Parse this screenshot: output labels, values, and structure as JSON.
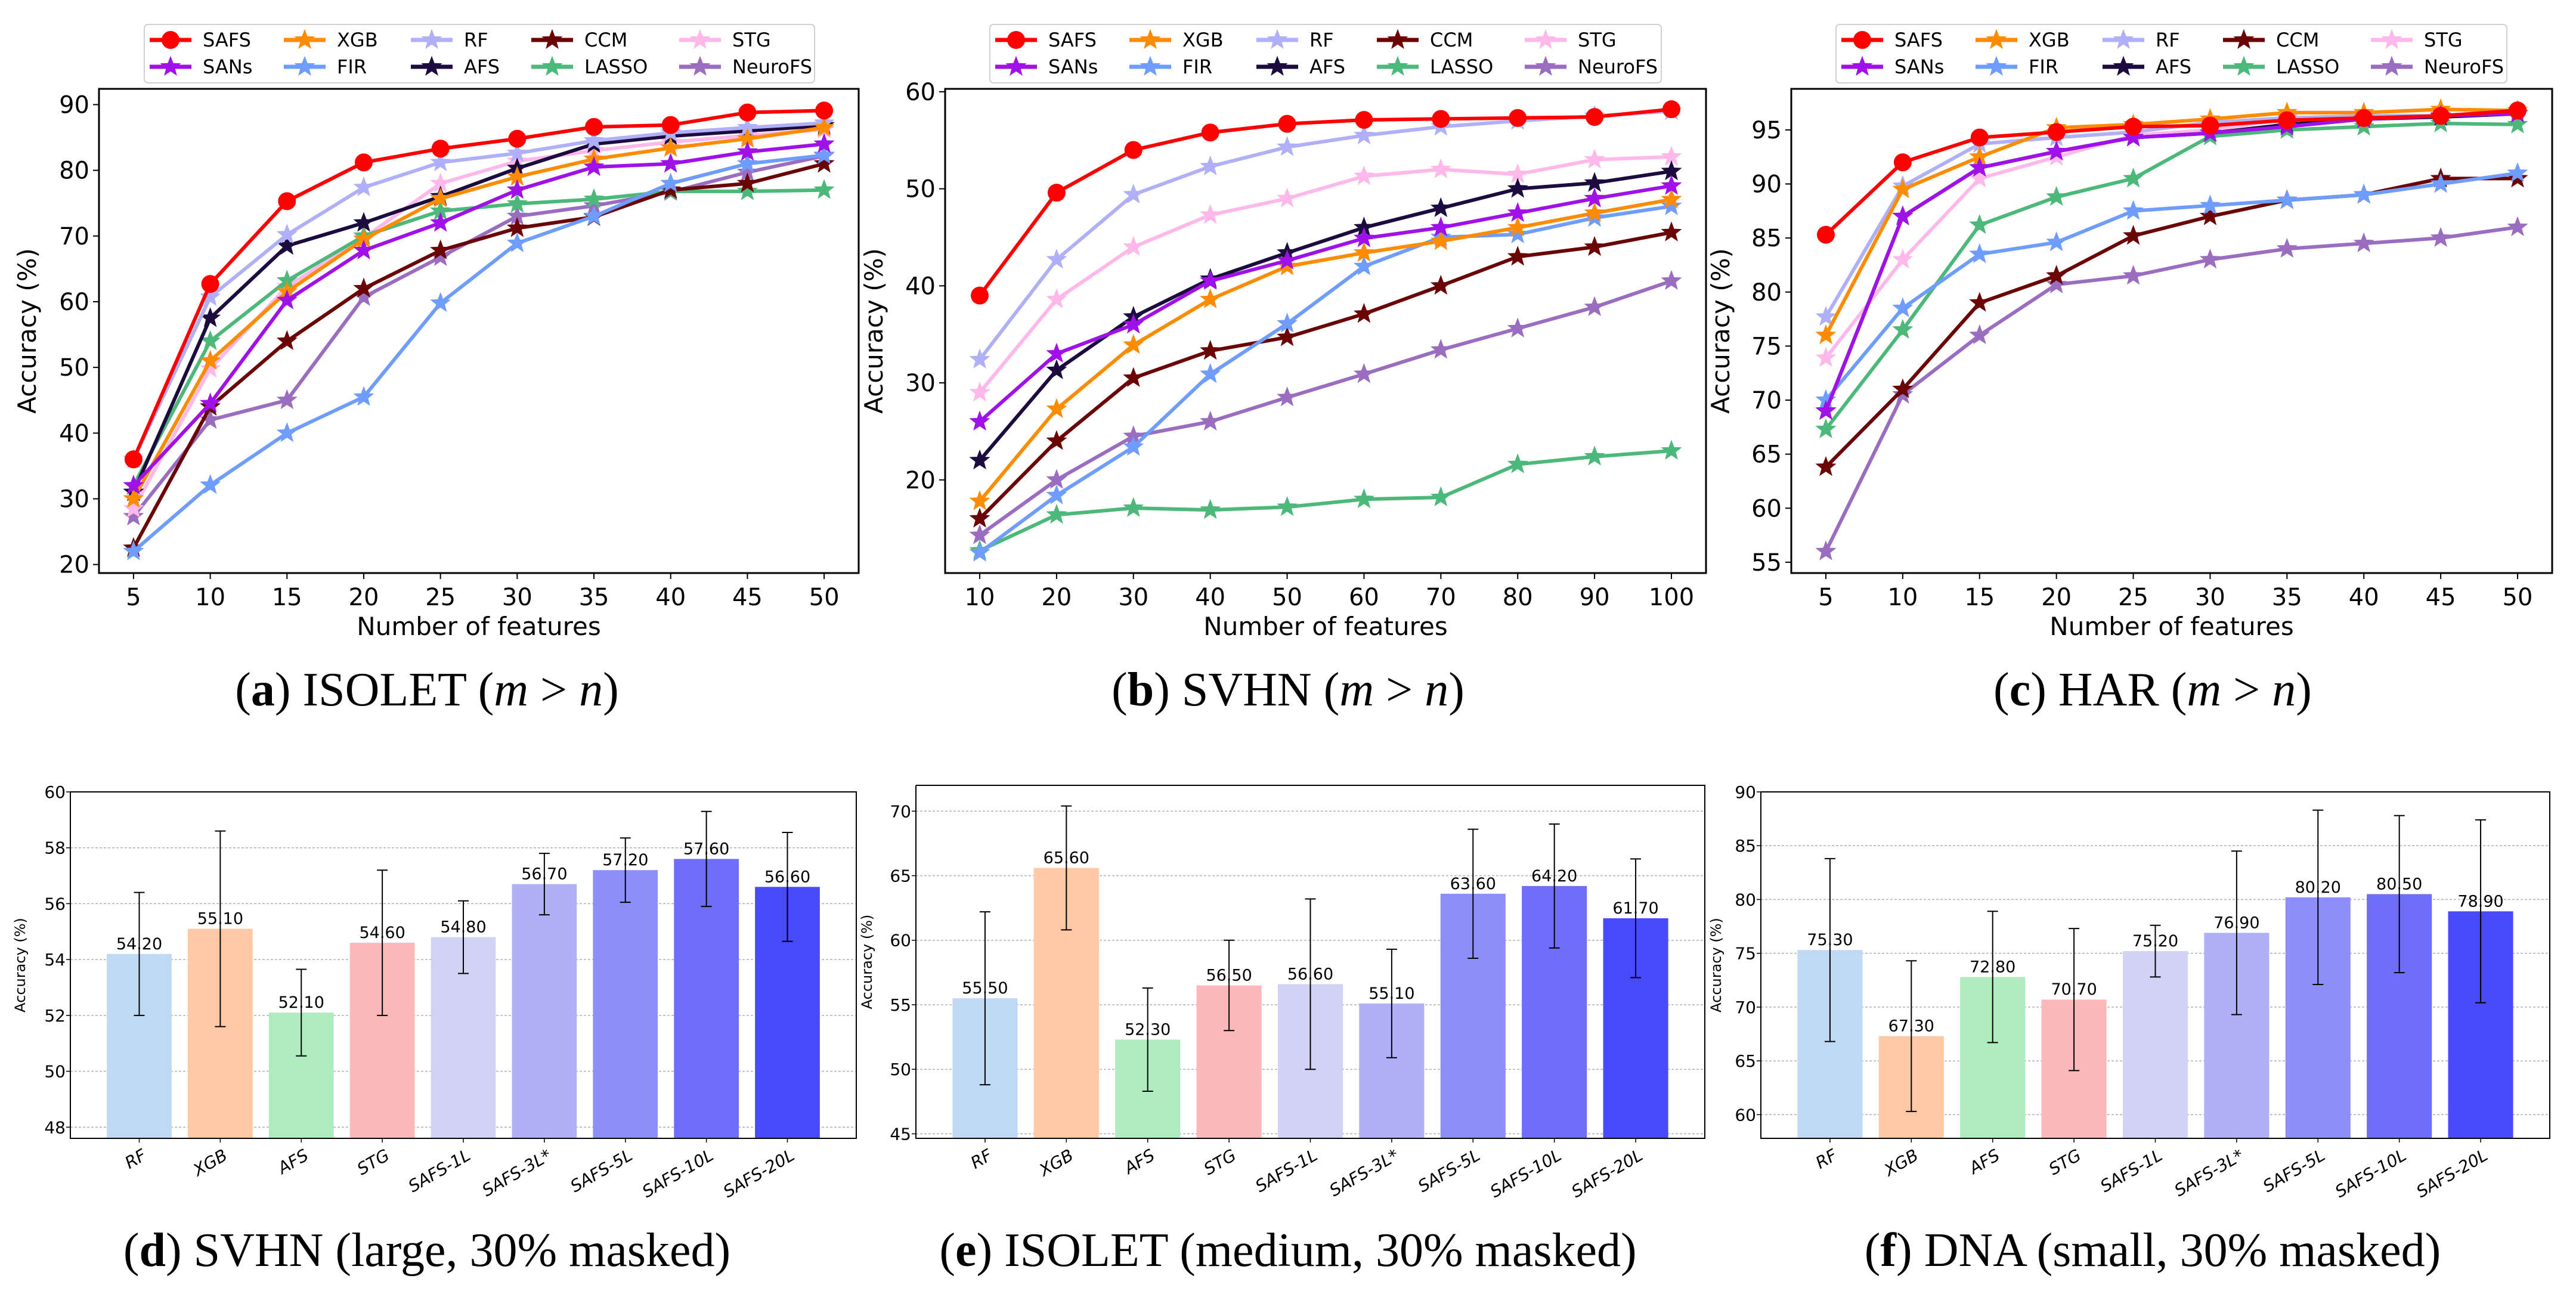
{
  "chart_data": [
    {
      "panel": "a",
      "type": "line",
      "xlabel": "Number of features",
      "ylabel": "Accuracy (%)",
      "x": [
        5,
        10,
        15,
        20,
        25,
        30,
        35,
        40,
        45,
        50
      ],
      "xticks": [
        "5",
        "10",
        "15",
        "20",
        "25",
        "30",
        "35",
        "40",
        "45",
        "50"
      ],
      "yticks": [
        "20",
        "30",
        "40",
        "50",
        "60",
        "70",
        "80",
        "90"
      ],
      "xlim": [
        2.75,
        52.25
      ],
      "ylim": [
        18.7,
        92.4
      ],
      "legend": "top (above plot)",
      "grid": false,
      "series": [
        {
          "name": "SAFS",
          "color": "#ff0000",
          "marker": "circle",
          "values": [
            36,
            62.7,
            75.3,
            81.2,
            83.3,
            84.8,
            86.6,
            86.9,
            88.8,
            89.1
          ]
        },
        {
          "name": "SANs",
          "color": "#a010e8",
          "marker": "star",
          "values": [
            32,
            44.5,
            60.2,
            67.8,
            72,
            77,
            80.5,
            81,
            82.8,
            84
          ]
        },
        {
          "name": "XGB",
          "color": "#ff8c00",
          "marker": "star",
          "values": [
            30,
            51,
            61.5,
            69.5,
            75.7,
            79,
            81.7,
            83.4,
            84.8,
            86.5
          ]
        },
        {
          "name": "FIR",
          "color": "#6f9cff",
          "marker": "star",
          "values": [
            22,
            32.1,
            40,
            45.5,
            59.8,
            68.9,
            73,
            78,
            81,
            82.3
          ]
        },
        {
          "name": "RF",
          "color": "#b0b0f8",
          "marker": "star",
          "values": [
            36,
            60.7,
            70.2,
            77.4,
            81.2,
            82.6,
            84.5,
            85.7,
            86.5,
            87.2
          ]
        },
        {
          "name": "AFS",
          "color": "#1c0b3e",
          "marker": "star",
          "values": [
            31,
            57.5,
            68.5,
            72,
            76,
            80.3,
            84,
            85.2,
            86,
            86.8
          ]
        },
        {
          "name": "CCM",
          "color": "#6b0505",
          "marker": "star",
          "values": [
            22.5,
            44,
            54,
            62,
            67.8,
            71.2,
            72.9,
            77,
            78,
            81
          ]
        },
        {
          "name": "LASSO",
          "color": "#4cb87a",
          "marker": "star",
          "values": [
            32,
            54,
            63.2,
            70,
            73.8,
            74.9,
            75.6,
            76.8,
            76.8,
            77
          ]
        },
        {
          "name": "STG",
          "color": "#ffb8ea",
          "marker": "star",
          "values": [
            28.5,
            49.8,
            62.3,
            69.7,
            78,
            81.4,
            83,
            84.3,
            85.3,
            86.2
          ]
        },
        {
          "name": "NeuroFS",
          "color": "#9a6dc0",
          "marker": "star",
          "values": [
            27.3,
            42,
            45,
            60.7,
            66.8,
            73,
            74.6,
            76.7,
            79.7,
            82.2
          ]
        }
      ]
    },
    {
      "panel": "b",
      "type": "line",
      "xlabel": "Number of features",
      "ylabel": "Accuracy (%)",
      "x": [
        10,
        20,
        30,
        40,
        50,
        60,
        70,
        80,
        90,
        100
      ],
      "xticks": [
        "10",
        "20",
        "30",
        "40",
        "50",
        "60",
        "70",
        "80",
        "90",
        "100"
      ],
      "yticks": [
        "20",
        "30",
        "40",
        "50",
        "60"
      ],
      "xlim": [
        5.5,
        104.5
      ],
      "ylim": [
        10.4,
        60.3
      ],
      "legend": "top (above plot)",
      "grid": false,
      "series": [
        {
          "name": "SAFS",
          "color": "#ff0000",
          "marker": "circle",
          "values": [
            39,
            49.6,
            54,
            55.8,
            56.7,
            57.1,
            57.2,
            57.3,
            57.4,
            58.2
          ]
        },
        {
          "name": "SANs",
          "color": "#a010e8",
          "marker": "star",
          "values": [
            26,
            33,
            36,
            40.5,
            42.6,
            44.9,
            46,
            47.5,
            49,
            50.3
          ]
        },
        {
          "name": "XGB",
          "color": "#ff8c00",
          "marker": "star",
          "values": [
            17.8,
            27.3,
            33.9,
            38.6,
            42,
            43.4,
            44.6,
            46,
            47.5,
            48.9
          ]
        },
        {
          "name": "FIR",
          "color": "#6f9cff",
          "marker": "star",
          "values": [
            12.5,
            18.4,
            23.4,
            30.9,
            36.1,
            42,
            45,
            45.3,
            47,
            48.2
          ]
        },
        {
          "name": "RF",
          "color": "#b0b0f8",
          "marker": "star",
          "values": [
            32.4,
            42.7,
            49.4,
            52.3,
            54.3,
            55.5,
            56.4,
            57,
            57.5,
            58
          ]
        },
        {
          "name": "AFS",
          "color": "#1c0b3e",
          "marker": "star",
          "values": [
            22,
            31.3,
            36.8,
            40.7,
            43.4,
            46,
            48,
            50,
            50.6,
            51.8
          ]
        },
        {
          "name": "CCM",
          "color": "#6b0505",
          "marker": "star",
          "values": [
            16,
            24,
            30.5,
            33.3,
            34.7,
            37.1,
            40,
            43,
            44,
            45.5
          ]
        },
        {
          "name": "LASSO",
          "color": "#4cb87a",
          "marker": "star",
          "values": [
            12.7,
            16.4,
            17.1,
            16.9,
            17.2,
            18,
            18.2,
            21.6,
            22.4,
            23
          ]
        },
        {
          "name": "STG",
          "color": "#ffb8ea",
          "marker": "star",
          "values": [
            29,
            38.6,
            44,
            47.3,
            49,
            51.3,
            52,
            51.5,
            53,
            53.3
          ]
        },
        {
          "name": "NeuroFS",
          "color": "#9a6dc0",
          "marker": "star",
          "values": [
            14.3,
            20,
            24.5,
            26,
            28.5,
            30.9,
            33.4,
            35.6,
            37.8,
            40.5
          ]
        }
      ]
    },
    {
      "panel": "c",
      "type": "line",
      "xlabel": "Number of features",
      "ylabel": "Accuracy (%)",
      "x": [
        5,
        10,
        15,
        20,
        25,
        30,
        35,
        40,
        45,
        50
      ],
      "xticks": [
        "5",
        "10",
        "15",
        "20",
        "25",
        "30",
        "35",
        "40",
        "45",
        "50"
      ],
      "yticks": [
        "55",
        "60",
        "65",
        "70",
        "75",
        "80",
        "85",
        "90",
        "95"
      ],
      "xlim": [
        2.75,
        52.25
      ],
      "ylim": [
        54.0,
        98.8
      ],
      "legend": "top (above plot)",
      "grid": false,
      "series": [
        {
          "name": "SAFS",
          "color": "#ff0000",
          "marker": "circle",
          "values": [
            85.3,
            92,
            94.3,
            94.8,
            95.3,
            95.4,
            95.9,
            96.1,
            96.3,
            96.8
          ]
        },
        {
          "name": "SANs",
          "color": "#a010e8",
          "marker": "star",
          "values": [
            69,
            87,
            91.5,
            93,
            94.3,
            94.7,
            95.3,
            96,
            96.3,
            96.5
          ]
        },
        {
          "name": "XGB",
          "color": "#ff8c00",
          "marker": "star",
          "values": [
            76,
            89.5,
            92.5,
            95.2,
            95.5,
            96,
            96.6,
            96.6,
            96.9,
            96.8
          ]
        },
        {
          "name": "FIR",
          "color": "#6f9cff",
          "marker": "star",
          "values": [
            70,
            78.5,
            83.5,
            84.6,
            87.5,
            88,
            88.5,
            89,
            90,
            91
          ]
        },
        {
          "name": "RF",
          "color": "#b0b0f8",
          "marker": "star",
          "values": [
            77.7,
            89.8,
            93.7,
            94.3,
            94.8,
            95.7,
            96.1,
            96.3,
            96.3,
            96.6
          ]
        },
        {
          "name": "AFS",
          "color": "#1c0b3e",
          "marker": "star",
          "values": [
            69,
            87,
            91.5,
            93,
            94.3,
            94.7,
            95.5,
            96,
            96.2,
            96.5
          ]
        },
        {
          "name": "CCM",
          "color": "#6b0505",
          "marker": "star",
          "values": [
            63.8,
            71,
            79,
            81.5,
            85.2,
            87,
            88.5,
            89,
            90.5,
            90.5
          ]
        },
        {
          "name": "LASSO",
          "color": "#4cb87a",
          "marker": "star",
          "values": [
            67.3,
            76.5,
            86.2,
            88.8,
            90.5,
            94.4,
            95,
            95.3,
            95.6,
            95.5
          ]
        },
        {
          "name": "STG",
          "color": "#ffb8ea",
          "marker": "star",
          "values": [
            73.9,
            83,
            90.5,
            92.5,
            94.5,
            95,
            96,
            96.1,
            96.3,
            96.5
          ]
        },
        {
          "name": "NeuroFS",
          "color": "#9a6dc0",
          "marker": "star",
          "values": [
            56,
            70.5,
            76,
            80.7,
            81.5,
            83,
            84,
            84.5,
            85,
            86
          ]
        }
      ]
    },
    {
      "panel": "d",
      "type": "bar",
      "ylabel": "Accuracy (%)",
      "categories": [
        "RF",
        "XGB",
        "AFS",
        "STG",
        "SAFS-1L",
        "SAFS-3L*",
        "SAFS-5L",
        "SAFS-10L",
        "SAFS-20L"
      ],
      "values": [
        54.2,
        55.1,
        52.1,
        54.6,
        54.8,
        56.7,
        57.2,
        57.6,
        56.6
      ],
      "labels": [
        "54.20",
        "55.10",
        "52.10",
        "54.60",
        "54.80",
        "56.70",
        "57.20",
        "57.60",
        "56.60"
      ],
      "errors": [
        2.2,
        3.5,
        1.55,
        2.6,
        1.3,
        1.1,
        1.15,
        1.7,
        1.95
      ],
      "yticks": [
        "48",
        "50",
        "52",
        "54",
        "56",
        "58",
        "60"
      ],
      "ylim": [
        47.6,
        60
      ],
      "grid": true,
      "colors": [
        "#bfd9f5",
        "#fdc9a4",
        "#aeebbd",
        "#fdb9b9",
        "#d2d2f5",
        "#b0b0f7",
        "#8e8ef9",
        "#6e6efb",
        "#4a4afd"
      ]
    },
    {
      "panel": "e",
      "type": "bar",
      "ylabel": "Accuracy (%)",
      "categories": [
        "RF",
        "XGB",
        "AFS",
        "STG",
        "SAFS-1L",
        "SAFS-3L*",
        "SAFS-5L",
        "SAFS-10L",
        "SAFS-20L"
      ],
      "values": [
        55.5,
        65.6,
        52.3,
        56.5,
        56.6,
        55.1,
        63.6,
        64.2,
        61.7
      ],
      "labels": [
        "55.50",
        "65.60",
        "52.30",
        "56.50",
        "56.60",
        "55.10",
        "63.60",
        "64.20",
        "61.70"
      ],
      "errors": [
        6.7,
        4.8,
        4.0,
        3.5,
        6.6,
        4.2,
        5.0,
        4.8,
        4.6
      ],
      "yticks": [
        "45",
        "50",
        "55",
        "60",
        "65",
        "70"
      ],
      "ylim": [
        44.65,
        72
      ],
      "grid": true,
      "colors": [
        "#bfd9f5",
        "#fdc9a4",
        "#aeebbd",
        "#fdb9b9",
        "#d2d2f5",
        "#b0b0f7",
        "#8e8ef9",
        "#6e6efb",
        "#4a4afd"
      ]
    },
    {
      "panel": "f",
      "type": "bar",
      "ylabel": "Accuracy (%)",
      "categories": [
        "RF",
        "XGB",
        "AFS",
        "STG",
        "SAFS-1L",
        "SAFS-3L*",
        "SAFS-5L",
        "SAFS-10L",
        "SAFS-20L"
      ],
      "values": [
        75.3,
        67.3,
        72.8,
        70.7,
        75.2,
        76.9,
        80.2,
        80.5,
        78.9
      ],
      "labels": [
        "75.30",
        "67.30",
        "72.80",
        "70.70",
        "75.20",
        "76.90",
        "80.20",
        "80.50",
        "78.90"
      ],
      "errors": [
        8.5,
        7.0,
        6.1,
        6.6,
        2.4,
        7.6,
        8.1,
        7.3,
        8.5
      ],
      "yticks": [
        "60",
        "65",
        "70",
        "75",
        "80",
        "85",
        "90"
      ],
      "ylim": [
        57.8,
        90
      ],
      "grid": true,
      "colors": [
        "#bfd9f5",
        "#fdc9a4",
        "#aeebbd",
        "#fdb9b9",
        "#d2d2f5",
        "#b0b0f7",
        "#8e8ef9",
        "#6e6efb",
        "#4a4afd"
      ]
    }
  ],
  "captions": [
    {
      "letter": "a",
      "text": "ISOLET",
      "m": "m",
      "op": " > ",
      "n": "n"
    },
    {
      "letter": "b",
      "text": "SVHN",
      "m": "m",
      "op": " > ",
      "n": "n"
    },
    {
      "letter": "c",
      "text": "HAR",
      "m": "m",
      "op": " > ",
      "n": "n"
    },
    {
      "letter": "d",
      "text": "SVHN (large, 30% masked)"
    },
    {
      "letter": "e",
      "text": "ISOLET (medium, 30% masked)"
    },
    {
      "letter": "f",
      "text": "DNA (small, 30% masked)"
    }
  ]
}
